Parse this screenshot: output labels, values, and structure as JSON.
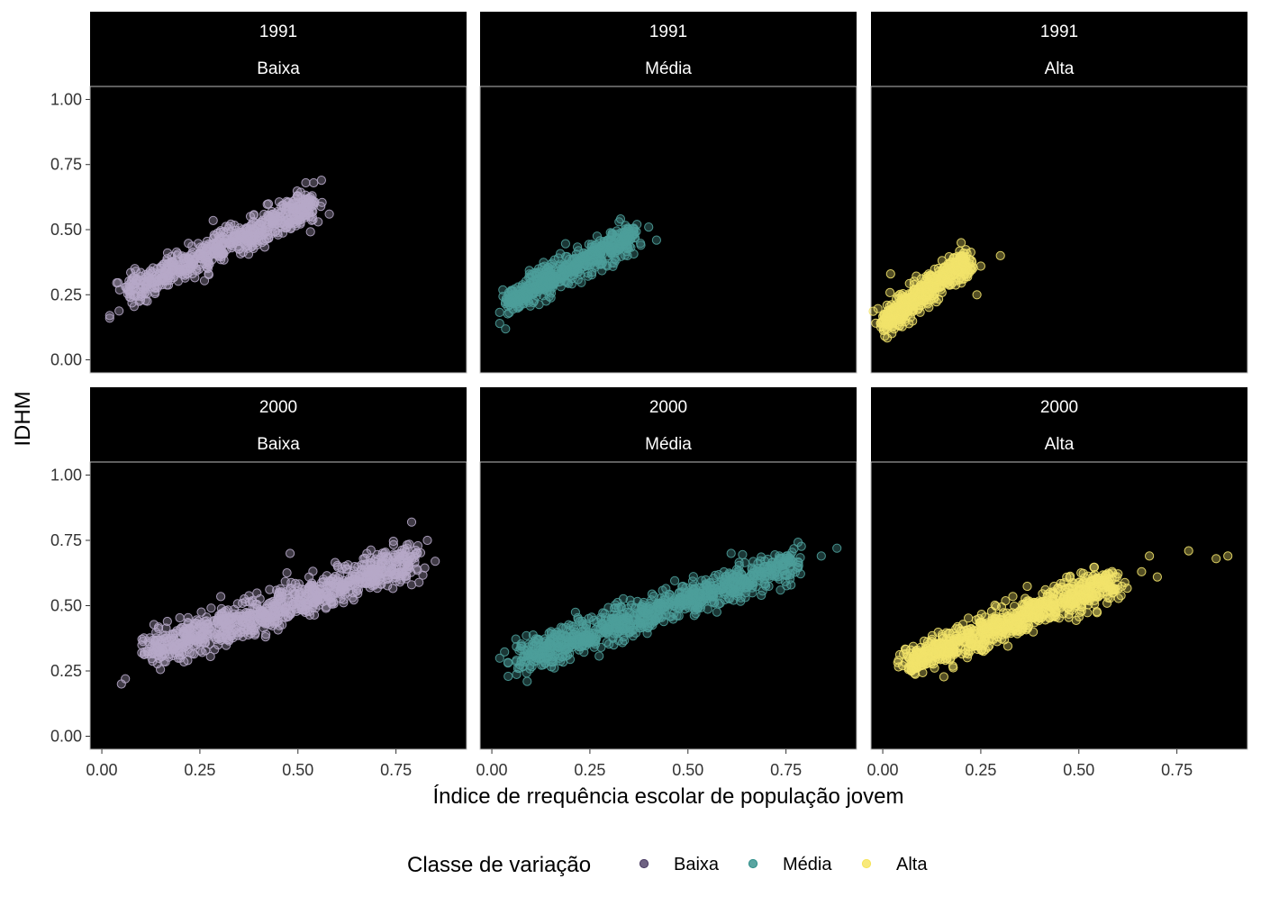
{
  "chart_data": {
    "type": "scatter",
    "xlabel": "Índice de rrequência escolar de população jovem",
    "ylabel": "IDHM",
    "xlim": [
      -0.03,
      0.93
    ],
    "ylim": [
      -0.05,
      1.05
    ],
    "x_ticks": [
      0.0,
      0.25,
      0.5,
      0.75
    ],
    "x_tick_labels": [
      "0.00",
      "0.25",
      "0.50",
      "0.75"
    ],
    "y_ticks": [
      0.0,
      0.25,
      0.5,
      0.75,
      1.0
    ],
    "y_tick_labels": [
      "0.00",
      "0.25",
      "0.50",
      "0.75",
      "1.00"
    ],
    "legend": {
      "title": "Classe de variação",
      "position": "bottom",
      "entries": [
        {
          "label": "Baixa",
          "color": "#4a3b63"
        },
        {
          "label": "Média",
          "color": "#2f8f8a"
        },
        {
          "label": "Alta",
          "color": "#f6e45a"
        }
      ]
    },
    "colors": {
      "Baixa": "#b6a8c8",
      "Média": "#4c9f9a",
      "Alta": "#f2e36a",
      "panel_bg": "#000000",
      "strip_bg": "#000000"
    },
    "panels": [
      {
        "year": "1991",
        "classe": "Baixa",
        "series": "Baixa",
        "n": 650,
        "trend": {
          "x_range": [
            0.06,
            0.54
          ],
          "y_at_start": 0.26,
          "y_at_end": 0.6,
          "spread_x": 0.035,
          "spread_y": 0.03
        },
        "outliers": [
          {
            "x": 0.02,
            "y": 0.16
          },
          {
            "x": 0.02,
            "y": 0.17
          },
          {
            "x": 0.58,
            "y": 0.56
          },
          {
            "x": 0.56,
            "y": 0.69
          },
          {
            "x": 0.52,
            "y": 0.68
          },
          {
            "x": 0.54,
            "y": 0.68
          },
          {
            "x": 0.52,
            "y": 0.56
          }
        ]
      },
      {
        "year": "1991",
        "classe": "Média",
        "series": "Média",
        "n": 550,
        "trend": {
          "x_range": [
            0.04,
            0.36
          ],
          "y_at_start": 0.22,
          "y_at_end": 0.48,
          "spread_x": 0.03,
          "spread_y": 0.028
        },
        "outliers": [
          {
            "x": 0.02,
            "y": 0.14
          },
          {
            "x": 0.42,
            "y": 0.46
          },
          {
            "x": 0.4,
            "y": 0.51
          },
          {
            "x": 0.37,
            "y": 0.52
          },
          {
            "x": 0.38,
            "y": 0.44
          }
        ]
      },
      {
        "year": "1991",
        "classe": "Alta",
        "series": "Alta",
        "n": 500,
        "trend": {
          "x_range": [
            0.0,
            0.22
          ],
          "y_at_start": 0.14,
          "y_at_end": 0.39,
          "spread_x": 0.025,
          "spread_y": 0.028
        },
        "outliers": [
          {
            "x": 0.3,
            "y": 0.4
          },
          {
            "x": 0.25,
            "y": 0.36
          },
          {
            "x": 0.24,
            "y": 0.25
          },
          {
            "x": 0.2,
            "y": 0.45
          },
          {
            "x": 0.02,
            "y": 0.33
          }
        ]
      },
      {
        "year": "2000",
        "classe": "Baixa",
        "series": "Baixa",
        "n": 900,
        "trend": {
          "x_range": [
            0.12,
            0.8
          ],
          "y_at_start": 0.32,
          "y_at_end": 0.68,
          "spread_x": 0.04,
          "spread_y": 0.035
        },
        "outliers": [
          {
            "x": 0.05,
            "y": 0.2
          },
          {
            "x": 0.06,
            "y": 0.22
          },
          {
            "x": 0.79,
            "y": 0.82
          },
          {
            "x": 0.83,
            "y": 0.75
          },
          {
            "x": 0.85,
            "y": 0.67
          },
          {
            "x": 0.79,
            "y": 0.58
          },
          {
            "x": 0.48,
            "y": 0.7
          }
        ]
      },
      {
        "year": "2000",
        "classe": "Média",
        "series": "Média",
        "n": 850,
        "trend": {
          "x_range": [
            0.06,
            0.78
          ],
          "y_at_start": 0.29,
          "y_at_end": 0.67,
          "spread_x": 0.04,
          "spread_y": 0.032
        },
        "outliers": [
          {
            "x": 0.09,
            "y": 0.21
          },
          {
            "x": 0.07,
            "y": 0.26
          },
          {
            "x": 0.88,
            "y": 0.72
          },
          {
            "x": 0.84,
            "y": 0.69
          },
          {
            "x": 0.61,
            "y": 0.7
          },
          {
            "x": 0.52,
            "y": 0.47
          }
        ]
      },
      {
        "year": "2000",
        "classe": "Alta",
        "series": "Alta",
        "n": 850,
        "trend": {
          "x_range": [
            0.06,
            0.6
          ],
          "y_at_start": 0.28,
          "y_at_end": 0.6,
          "spread_x": 0.04,
          "spread_y": 0.032
        },
        "outliers": [
          {
            "x": 0.78,
            "y": 0.71
          },
          {
            "x": 0.85,
            "y": 0.68
          },
          {
            "x": 0.88,
            "y": 0.69
          },
          {
            "x": 0.68,
            "y": 0.69
          },
          {
            "x": 0.7,
            "y": 0.61
          },
          {
            "x": 0.66,
            "y": 0.63
          },
          {
            "x": 0.04,
            "y": 0.29
          }
        ]
      }
    ]
  }
}
